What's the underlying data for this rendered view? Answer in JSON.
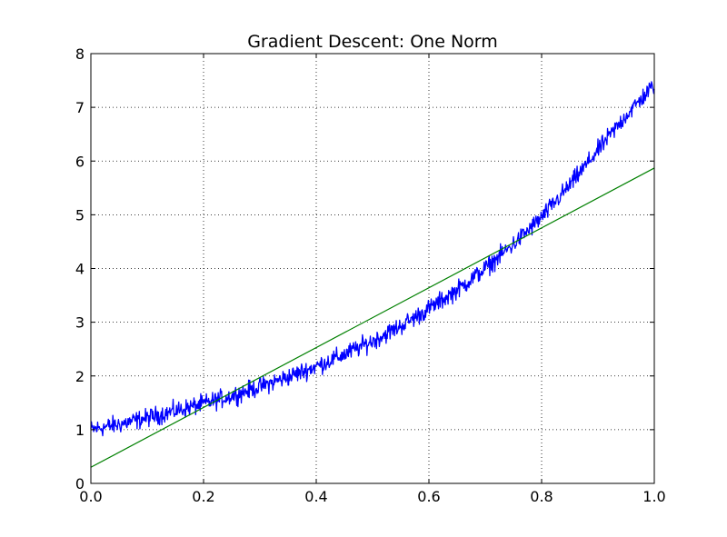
{
  "chart_data": {
    "type": "line",
    "title": "Gradient Descent: One Norm",
    "xlabel": "",
    "ylabel": "",
    "xlim": [
      0.0,
      1.0
    ],
    "ylim": [
      0,
      8
    ],
    "x_ticks": [
      0.0,
      0.2,
      0.4,
      0.6,
      0.8,
      1.0
    ],
    "x_tick_labels": [
      "0.0",
      "0.2",
      "0.4",
      "0.6",
      "0.8",
      "1.0"
    ],
    "y_ticks": [
      0,
      1,
      2,
      3,
      4,
      5,
      6,
      7,
      8
    ],
    "y_tick_labels": [
      "0",
      "1",
      "2",
      "3",
      "4",
      "5",
      "6",
      "7",
      "8"
    ],
    "grid": true,
    "series": [
      {
        "color": "#0000ff",
        "x": [
          0.0,
          0.05,
          0.1,
          0.15,
          0.2,
          0.25,
          0.3,
          0.35,
          0.4,
          0.45,
          0.5,
          0.55,
          0.6,
          0.65,
          0.7,
          0.75,
          0.8,
          0.85,
          0.9,
          0.95,
          1.0
        ],
        "y": [
          1.0,
          1.1,
          1.22,
          1.35,
          1.48,
          1.63,
          1.8,
          1.98,
          2.18,
          2.4,
          2.65,
          2.93,
          3.25,
          3.6,
          4.0,
          4.45,
          4.95,
          5.55,
          6.2,
          6.85,
          7.42
        ],
        "noise": 0.12
      },
      {
        "color": "#008000",
        "x": [
          0.0,
          1.0
        ],
        "y": [
          0.3,
          5.87
        ]
      }
    ]
  }
}
